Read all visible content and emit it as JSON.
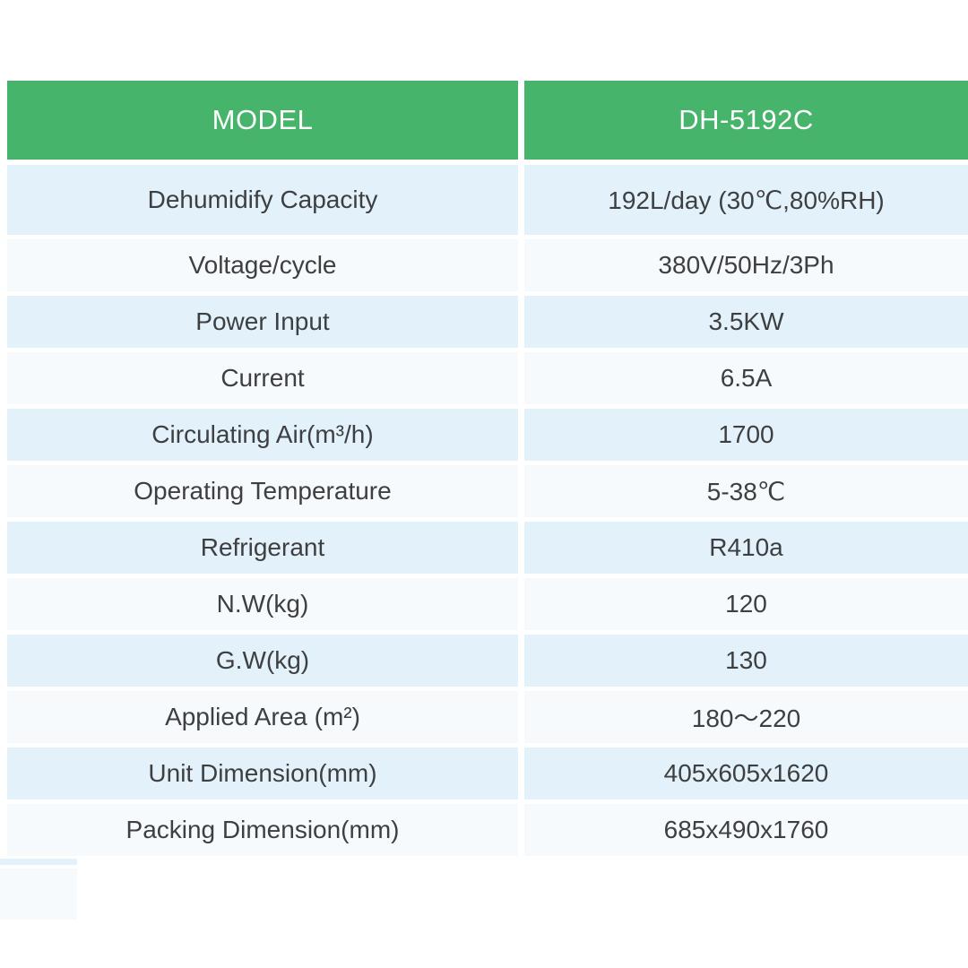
{
  "table": {
    "header": {
      "model_label": "MODEL",
      "model_value": "DH-5192C"
    },
    "rows": [
      {
        "label": "Dehumidify Capacity",
        "value": "192L/day (30℃,80%RH)"
      },
      {
        "label": "Voltage/cycle",
        "value": "380V/50Hz/3Ph"
      },
      {
        "label": "Power Input",
        "value": "3.5KW"
      },
      {
        "label": "Current",
        "value": "6.5A"
      },
      {
        "label": "Circulating Air(m³/h)",
        "value": "1700"
      },
      {
        "label": "Operating Temperature",
        "value": "5-38℃"
      },
      {
        "label": "Refrigerant",
        "value": "R410a"
      },
      {
        "label": "N.W(kg)",
        "value": "120"
      },
      {
        "label": "G.W(kg)",
        "value": "130"
      },
      {
        "label": "Applied Area (m²)",
        "value": "180～220"
      },
      {
        "label": "Unit Dimension(mm)",
        "value": "405x605x1620"
      },
      {
        "label": "Packing Dimension(mm)",
        "value": "685x490x1760"
      }
    ],
    "colors": {
      "header_green": "#46b46a",
      "header_text": "#ffffff",
      "row_blue": "#e3f1fb",
      "row_light": "#f6fafd",
      "body_text": "#3e3f41"
    }
  }
}
